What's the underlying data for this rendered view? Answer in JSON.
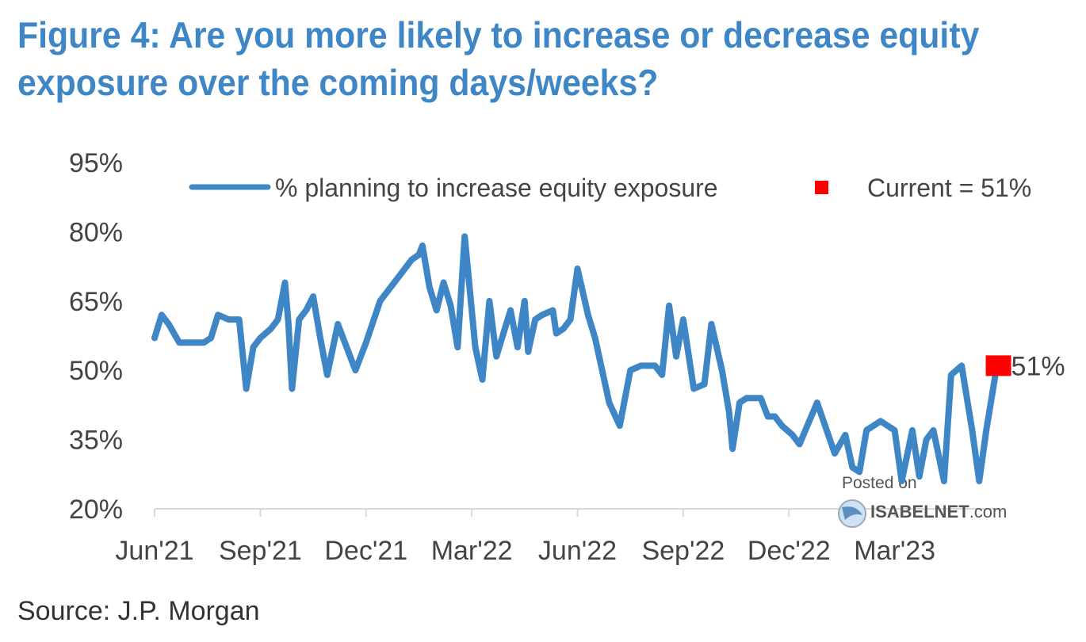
{
  "title_line1": "Figure 4: Are you more likely to increase or decrease equity",
  "title_line2": "exposure over the coming days/weeks?",
  "source": "Source: J.P. Morgan",
  "watermark": {
    "line1": "Posted on",
    "line2_bold": "ISABELNET",
    "line2_rest": ".com"
  },
  "colors": {
    "title": "#3f86c6",
    "series": "#3f86c6",
    "current": "#ff0000"
  },
  "chart_data": {
    "type": "line",
    "title": "Figure 4: Are you more likely to increase or decrease equity exposure over the coming days/weeks?",
    "xlabel": "",
    "ylabel": "",
    "ylim": [
      20,
      95
    ],
    "y_ticks": [
      20,
      35,
      50,
      65,
      80,
      95
    ],
    "y_tick_labels": [
      "20%",
      "35%",
      "50%",
      "65%",
      "80%",
      "95%"
    ],
    "x_tick_labels": [
      "Jun'21",
      "Sep'21",
      "Dec'21",
      "Mar'22",
      "Jun'22",
      "Sep'22",
      "Dec'22",
      "Mar'23"
    ],
    "x_range_months": [
      0,
      24
    ],
    "series": [
      {
        "name": "% planning to increase equity exposure",
        "x_months": [
          0.0,
          0.2,
          0.4,
          0.7,
          1.0,
          1.4,
          1.6,
          1.8,
          2.1,
          2.4,
          2.6,
          2.8,
          3.0,
          3.3,
          3.5,
          3.7,
          3.8,
          3.9,
          4.1,
          4.3,
          4.5,
          4.7,
          4.9,
          5.2,
          5.5,
          5.7,
          6.0,
          6.4,
          6.9,
          7.3,
          7.5,
          7.6,
          7.8,
          8.0,
          8.2,
          8.4,
          8.6,
          8.8,
          9.1,
          9.3,
          9.5,
          9.7,
          9.9,
          10.1,
          10.3,
          10.5,
          10.6,
          10.8,
          11.0,
          11.3,
          11.4,
          11.6,
          11.8,
          12.0,
          12.3,
          12.5,
          12.9,
          13.2,
          13.5,
          13.8,
          14.0,
          14.2,
          14.4,
          14.6,
          14.8,
          15.0,
          15.3,
          15.6,
          15.8,
          16.1,
          16.3,
          16.4,
          16.6,
          16.8,
          17.0,
          17.2,
          17.4,
          17.6,
          17.8,
          18.1,
          18.3,
          18.8,
          19.3,
          19.6,
          19.8,
          20.0,
          20.2,
          20.6,
          21.0,
          21.2,
          21.5,
          21.7,
          21.9,
          22.1,
          22.4,
          22.6,
          22.9,
          23.2,
          23.4,
          23.6,
          23.9
        ],
        "values": [
          57,
          62,
          60,
          56,
          56,
          56,
          57,
          62,
          61,
          61,
          46,
          55,
          57,
          59,
          61,
          69,
          60,
          46,
          61,
          63,
          66,
          57,
          49,
          60,
          54,
          50,
          56,
          65,
          70,
          74,
          75,
          77,
          68,
          63,
          69,
          64,
          55,
          79,
          55,
          48,
          65,
          53,
          58,
          63,
          55,
          65,
          54,
          61,
          62,
          63,
          58,
          59,
          61,
          72,
          62,
          57,
          43,
          38,
          50,
          51,
          51,
          51,
          49,
          64,
          53,
          61,
          46,
          47,
          60,
          50,
          41,
          33,
          43,
          44,
          44,
          44,
          40,
          40,
          38,
          36,
          34,
          43,
          32,
          36,
          29,
          28,
          37,
          39,
          37,
          26,
          37,
          27,
          35,
          37,
          26,
          49,
          51,
          37,
          26,
          37,
          51
        ]
      }
    ],
    "current": {
      "label": "Current = 51%",
      "value": 51,
      "annotation": "51%"
    },
    "legend": {
      "series_label": "% planning to increase equity exposure",
      "current_label": "Current = 51%",
      "placement": "top"
    }
  }
}
